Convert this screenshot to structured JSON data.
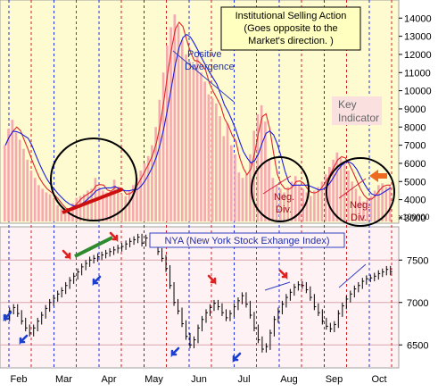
{
  "chart_data": [
    {
      "type": "bar",
      "panel": "Institutional Selling Action (top)",
      "title_lines": [
        "Institutional Selling Action",
        "(Goes opposite to the",
        "Market's direction. )"
      ],
      "y_tick_labels": [
        "3000",
        "4000",
        "5000",
        "6000",
        "7000",
        "8000",
        "9000",
        "10000",
        "11000",
        "12000",
        "13000",
        "14000"
      ],
      "y_unit_label": "x100000",
      "ylim": [
        2800,
        14800
      ],
      "colors": {
        "bars": "#f5a9b0",
        "line_short": "#e0282a",
        "line_long": "#1c1ce0",
        "background": "#fffbd0",
        "grid_v": "#1f2fe0",
        "grid_v_red": "#d02020"
      },
      "annotations": [
        {
          "text_lines": [
            "Positive",
            "Divergence"
          ],
          "color": "#1f2fa8"
        },
        {
          "text_lines": [
            "Neg.",
            "Div."
          ],
          "color": "#a01020"
        },
        {
          "text_lines": [
            "Neg.",
            "Div."
          ],
          "color": "#a01020"
        },
        {
          "text_lines": [
            "Key",
            "Indicator"
          ],
          "color": "#666666"
        }
      ],
      "values": [
        7000,
        7900,
        8400,
        7700,
        7300,
        6800,
        6200,
        5600,
        5200,
        4800,
        4600,
        4400,
        4300,
        4100,
        3700,
        3500,
        3400,
        3500,
        3800,
        4100,
        4200,
        4300,
        4500,
        4600,
        5200,
        4700,
        4500,
        4400,
        4500,
        5100,
        4400,
        4300,
        4200,
        4500,
        4800,
        5200,
        5600,
        6000,
        6400,
        7000,
        8000,
        9500,
        11000,
        12500,
        13500,
        14200,
        13600,
        12800,
        12000,
        11600,
        11400,
        11900,
        11000,
        10500,
        9800,
        9600,
        9300,
        8600,
        7500,
        8200,
        7000,
        6500,
        5500,
        5200,
        5400,
        6500,
        7800,
        8700,
        9200,
        8300,
        6200,
        5200,
        4800,
        4600,
        4400,
        4700,
        5000,
        5300,
        4800,
        4600,
        4400,
        4200,
        4500,
        4700,
        5000,
        5400,
        5800,
        6200,
        6600,
        6300,
        6000,
        5600,
        5000,
        4600,
        4200,
        3900,
        4000,
        4200,
        4500,
        4800,
        4900,
        4700,
        4800
      ]
    },
    {
      "type": "line",
      "panel": "NYA price (bottom)",
      "title": "NYA (New York Stock Exhange Index)",
      "x_tick_labels": [
        "Feb",
        "Mar",
        "Apr",
        "May",
        "Jun",
        "Jul",
        "Aug",
        "Sep",
        "Oct"
      ],
      "y_tick_labels": [
        "6500",
        "7000",
        "7500"
      ],
      "ylim": [
        6250,
        7850
      ],
      "colors": {
        "price": "#000000",
        "background": "#fff2f4",
        "grid_h": "#d8a6ad",
        "trend_green": "#2e8b2e",
        "trend_blue": "#1c1ce0",
        "arrow_red": "#e0201f",
        "arrow_blue": "#1c3fd0"
      },
      "values": [
        6820,
        6900,
        6940,
        6870,
        6780,
        6700,
        6640,
        6700,
        6780,
        6850,
        6930,
        7000,
        7050,
        7100,
        7140,
        7200,
        7260,
        7310,
        7360,
        7420,
        7460,
        7500,
        7520,
        7540,
        7560,
        7580,
        7600,
        7620,
        7640,
        7660,
        7690,
        7720,
        7740,
        7770,
        7700,
        7760,
        7780,
        7690,
        7600,
        7520,
        7400,
        7200,
        7000,
        6900,
        6750,
        6600,
        6500,
        6560,
        6700,
        6800,
        6880,
        6940,
        6990,
        6950,
        6880,
        6820,
        6870,
        6950,
        7020,
        7080,
        6980,
        6850,
        6700,
        6560,
        6450,
        6480,
        6640,
        6800,
        6900,
        6980,
        7060,
        7120,
        7180,
        7210,
        7200,
        7150,
        7060,
        6950,
        6880,
        6780,
        6720,
        6690,
        6740,
        6870,
        6960,
        7040,
        7100,
        7160,
        7200,
        7250,
        7280,
        7290,
        7310,
        7340,
        7360,
        7390,
        7360
      ]
    }
  ]
}
